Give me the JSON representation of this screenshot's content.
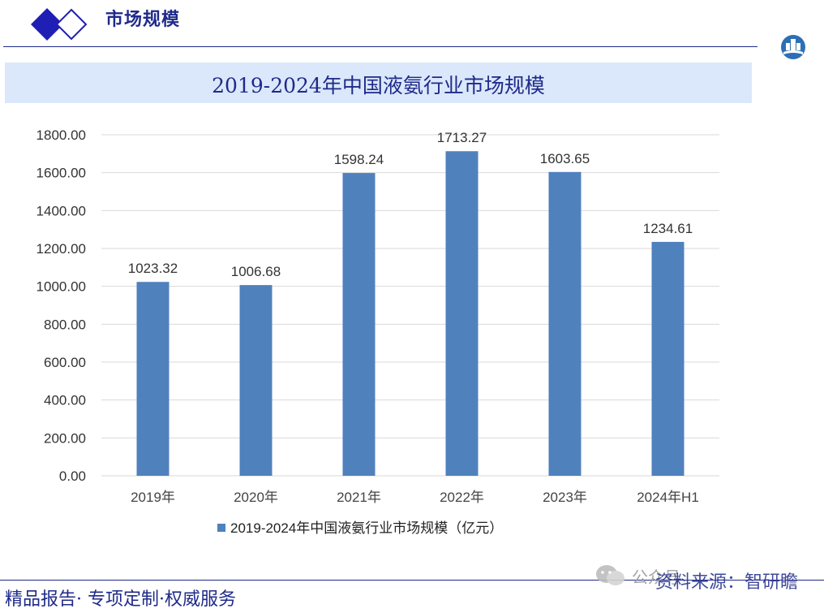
{
  "header": {
    "section_title": "市场规模"
  },
  "footer": {
    "slogan": "精品报告· 专项定制·权威服务",
    "watermark": "公众号",
    "source_note": "资料来源：智研瞻"
  },
  "colors": {
    "brand": "#1f2a8a",
    "bar": "#4f81bd",
    "band": "#dbe8fb",
    "grid": "#d9d9d9"
  },
  "chart_data": {
    "type": "bar",
    "title": "2019-2024年中国液氨行业市场规模",
    "categories": [
      "2019年",
      "2020年",
      "2021年",
      "2022年",
      "2023年",
      "2024年H1"
    ],
    "series": [
      {
        "name": "2019-2024年中国液氨行业市场规模（亿元）",
        "values": [
          1023.32,
          1006.68,
          1598.24,
          1713.27,
          1603.65,
          1234.61
        ],
        "labels": [
          "1023.32",
          "1006.68",
          "1598.24",
          "1713.27",
          "1603.65",
          "1234.61"
        ]
      }
    ],
    "y_ticks": [
      "0.00",
      "200.00",
      "400.00",
      "600.00",
      "800.00",
      "1000.00",
      "1200.00",
      "1400.00",
      "1600.00",
      "1800.00"
    ],
    "ylim": [
      0,
      1800
    ],
    "grid": true,
    "legend_position": "bottom"
  }
}
